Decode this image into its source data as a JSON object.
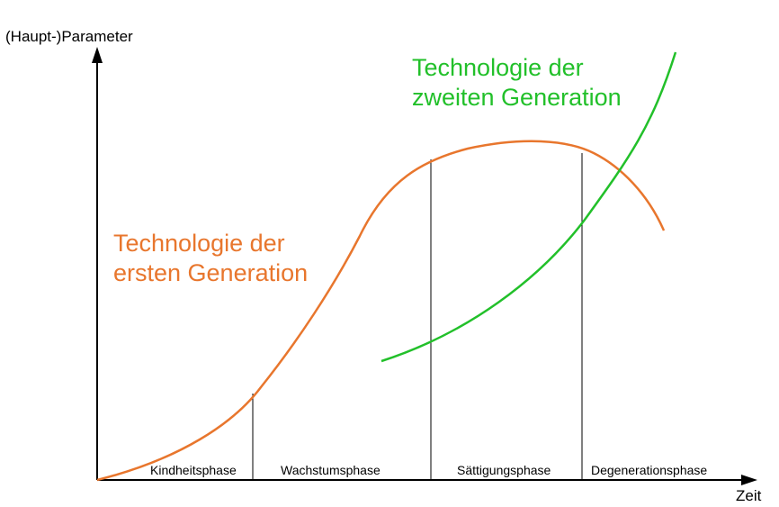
{
  "axes": {
    "y_label": "(Haupt-)Parameter",
    "x_label": "Zeit"
  },
  "curves": {
    "first": {
      "label_line1": "Technologie der",
      "label_line2": "ersten Generation",
      "color": "#E8762D"
    },
    "second": {
      "label_line1": "Technologie der",
      "label_line2": "zweiten Generation",
      "color": "#22C02A"
    }
  },
  "phases": [
    {
      "label": "Kindheitsphase"
    },
    {
      "label": "Wachstumsphase"
    },
    {
      "label": "Sättigungsphase"
    },
    {
      "label": "Degenerationsphase"
    }
  ]
}
